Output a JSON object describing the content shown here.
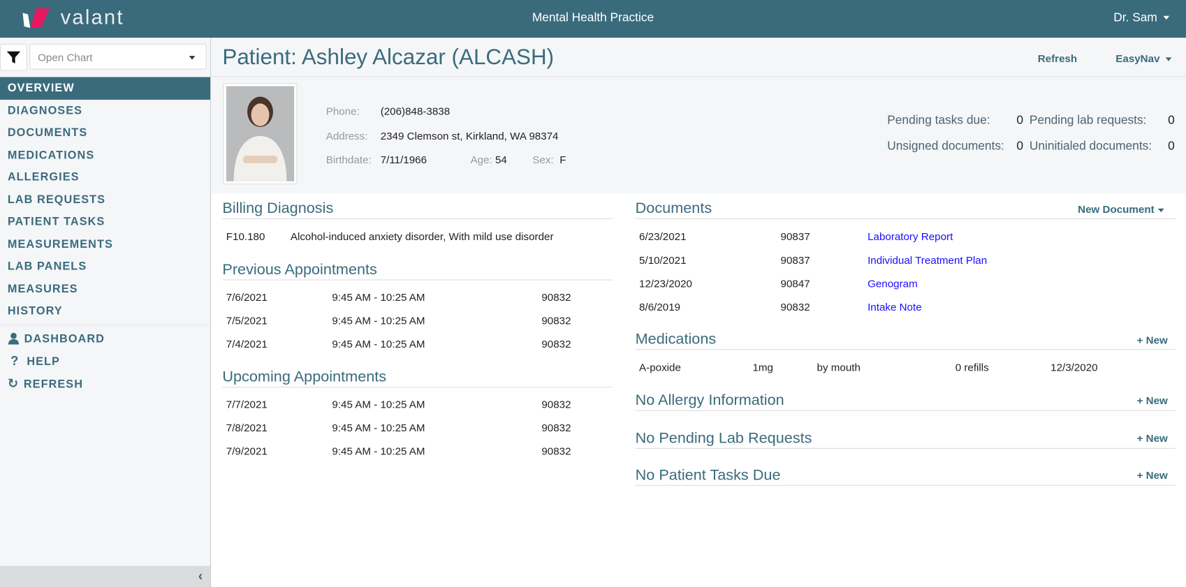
{
  "header": {
    "logo_text": "valant",
    "app_title": "Mental Health Practice",
    "user": "Dr. Sam"
  },
  "sidebar": {
    "open_chart_placeholder": "Open Chart",
    "items": [
      {
        "label": "OVERVIEW"
      },
      {
        "label": "DIAGNOSES"
      },
      {
        "label": "DOCUMENTS"
      },
      {
        "label": "MEDICATIONS"
      },
      {
        "label": "ALLERGIES"
      },
      {
        "label": "LAB REQUESTS"
      },
      {
        "label": "PATIENT TASKS"
      },
      {
        "label": "MEASUREMENTS"
      },
      {
        "label": "LAB PANELS"
      },
      {
        "label": "MEASURES"
      },
      {
        "label": "HISTORY"
      }
    ],
    "extra": [
      {
        "label": "DASHBOARD",
        "icon": "user-icon"
      },
      {
        "label": "HELP",
        "icon": "question-icon"
      },
      {
        "label": "REFRESH",
        "icon": "refresh-icon"
      }
    ]
  },
  "page": {
    "title": "Patient: Ashley Alcazar (ALCASH)",
    "refresh": "Refresh",
    "easynav": "EasyNav"
  },
  "patient": {
    "phone_label": "Phone:",
    "phone": "(206)848-3838",
    "address_label": "Address:",
    "address": "2349 Clemson st, Kirkland, WA 98374",
    "birthdate_label": "Birthdate:",
    "birthdate": "7/11/1966",
    "age_label": "Age:",
    "age": "54",
    "sex_label": "Sex:",
    "sex": "F"
  },
  "stats": {
    "pending_tasks_label": "Pending tasks due:",
    "pending_tasks": "0",
    "pending_lab_label": "Pending lab requests:",
    "pending_lab": "0",
    "unsigned_label": "Unsigned documents:",
    "unsigned": "0",
    "uninitialed_label": "Uninitialed documents:",
    "uninitialed": "0"
  },
  "billing": {
    "title": "Billing Diagnosis",
    "code": "F10.180",
    "description": "Alcohol-induced anxiety disorder, With mild use disorder"
  },
  "previous": {
    "title": "Previous Appointments",
    "rows": [
      {
        "date": "7/6/2021",
        "time": "9:45 AM - 10:25 AM",
        "code": "90832"
      },
      {
        "date": "7/5/2021",
        "time": "9:45 AM - 10:25 AM",
        "code": "90832"
      },
      {
        "date": "7/4/2021",
        "time": "9:45 AM - 10:25 AM",
        "code": "90832"
      }
    ]
  },
  "upcoming": {
    "title": "Upcoming Appointments",
    "rows": [
      {
        "date": "7/7/2021",
        "time": "9:45 AM - 10:25 AM",
        "code": "90832"
      },
      {
        "date": "7/8/2021",
        "time": "9:45 AM - 10:25 AM",
        "code": "90832"
      },
      {
        "date": "7/9/2021",
        "time": "9:45 AM - 10:25 AM",
        "code": "90832"
      }
    ]
  },
  "documents": {
    "title": "Documents",
    "new_label": "New Document",
    "rows": [
      {
        "date": "6/23/2021",
        "code": "90837",
        "name": "Laboratory Report"
      },
      {
        "date": "5/10/2021",
        "code": "90837",
        "name": "Individual Treatment Plan"
      },
      {
        "date": "12/23/2020",
        "code": "90847",
        "name": "Genogram"
      },
      {
        "date": "8/6/2019",
        "code": "90832",
        "name": "Intake Note"
      }
    ]
  },
  "medications": {
    "title": "Medications",
    "new_label": "+ New",
    "rows": [
      {
        "name": "A-poxide",
        "dose": "1mg",
        "route": "by mouth",
        "refills": "0 refills",
        "date": "12/3/2020"
      }
    ]
  },
  "allergy": {
    "title": "No Allergy Information",
    "new_label": "+ New"
  },
  "lab": {
    "title": "No Pending Lab Requests",
    "new_label": "+ New"
  },
  "tasks": {
    "title": "No Patient Tasks Due",
    "new_label": "+ New"
  },
  "colors": {
    "brand": "#3a6b7c",
    "accent": "#e5175f",
    "link": "#1a0dff"
  }
}
